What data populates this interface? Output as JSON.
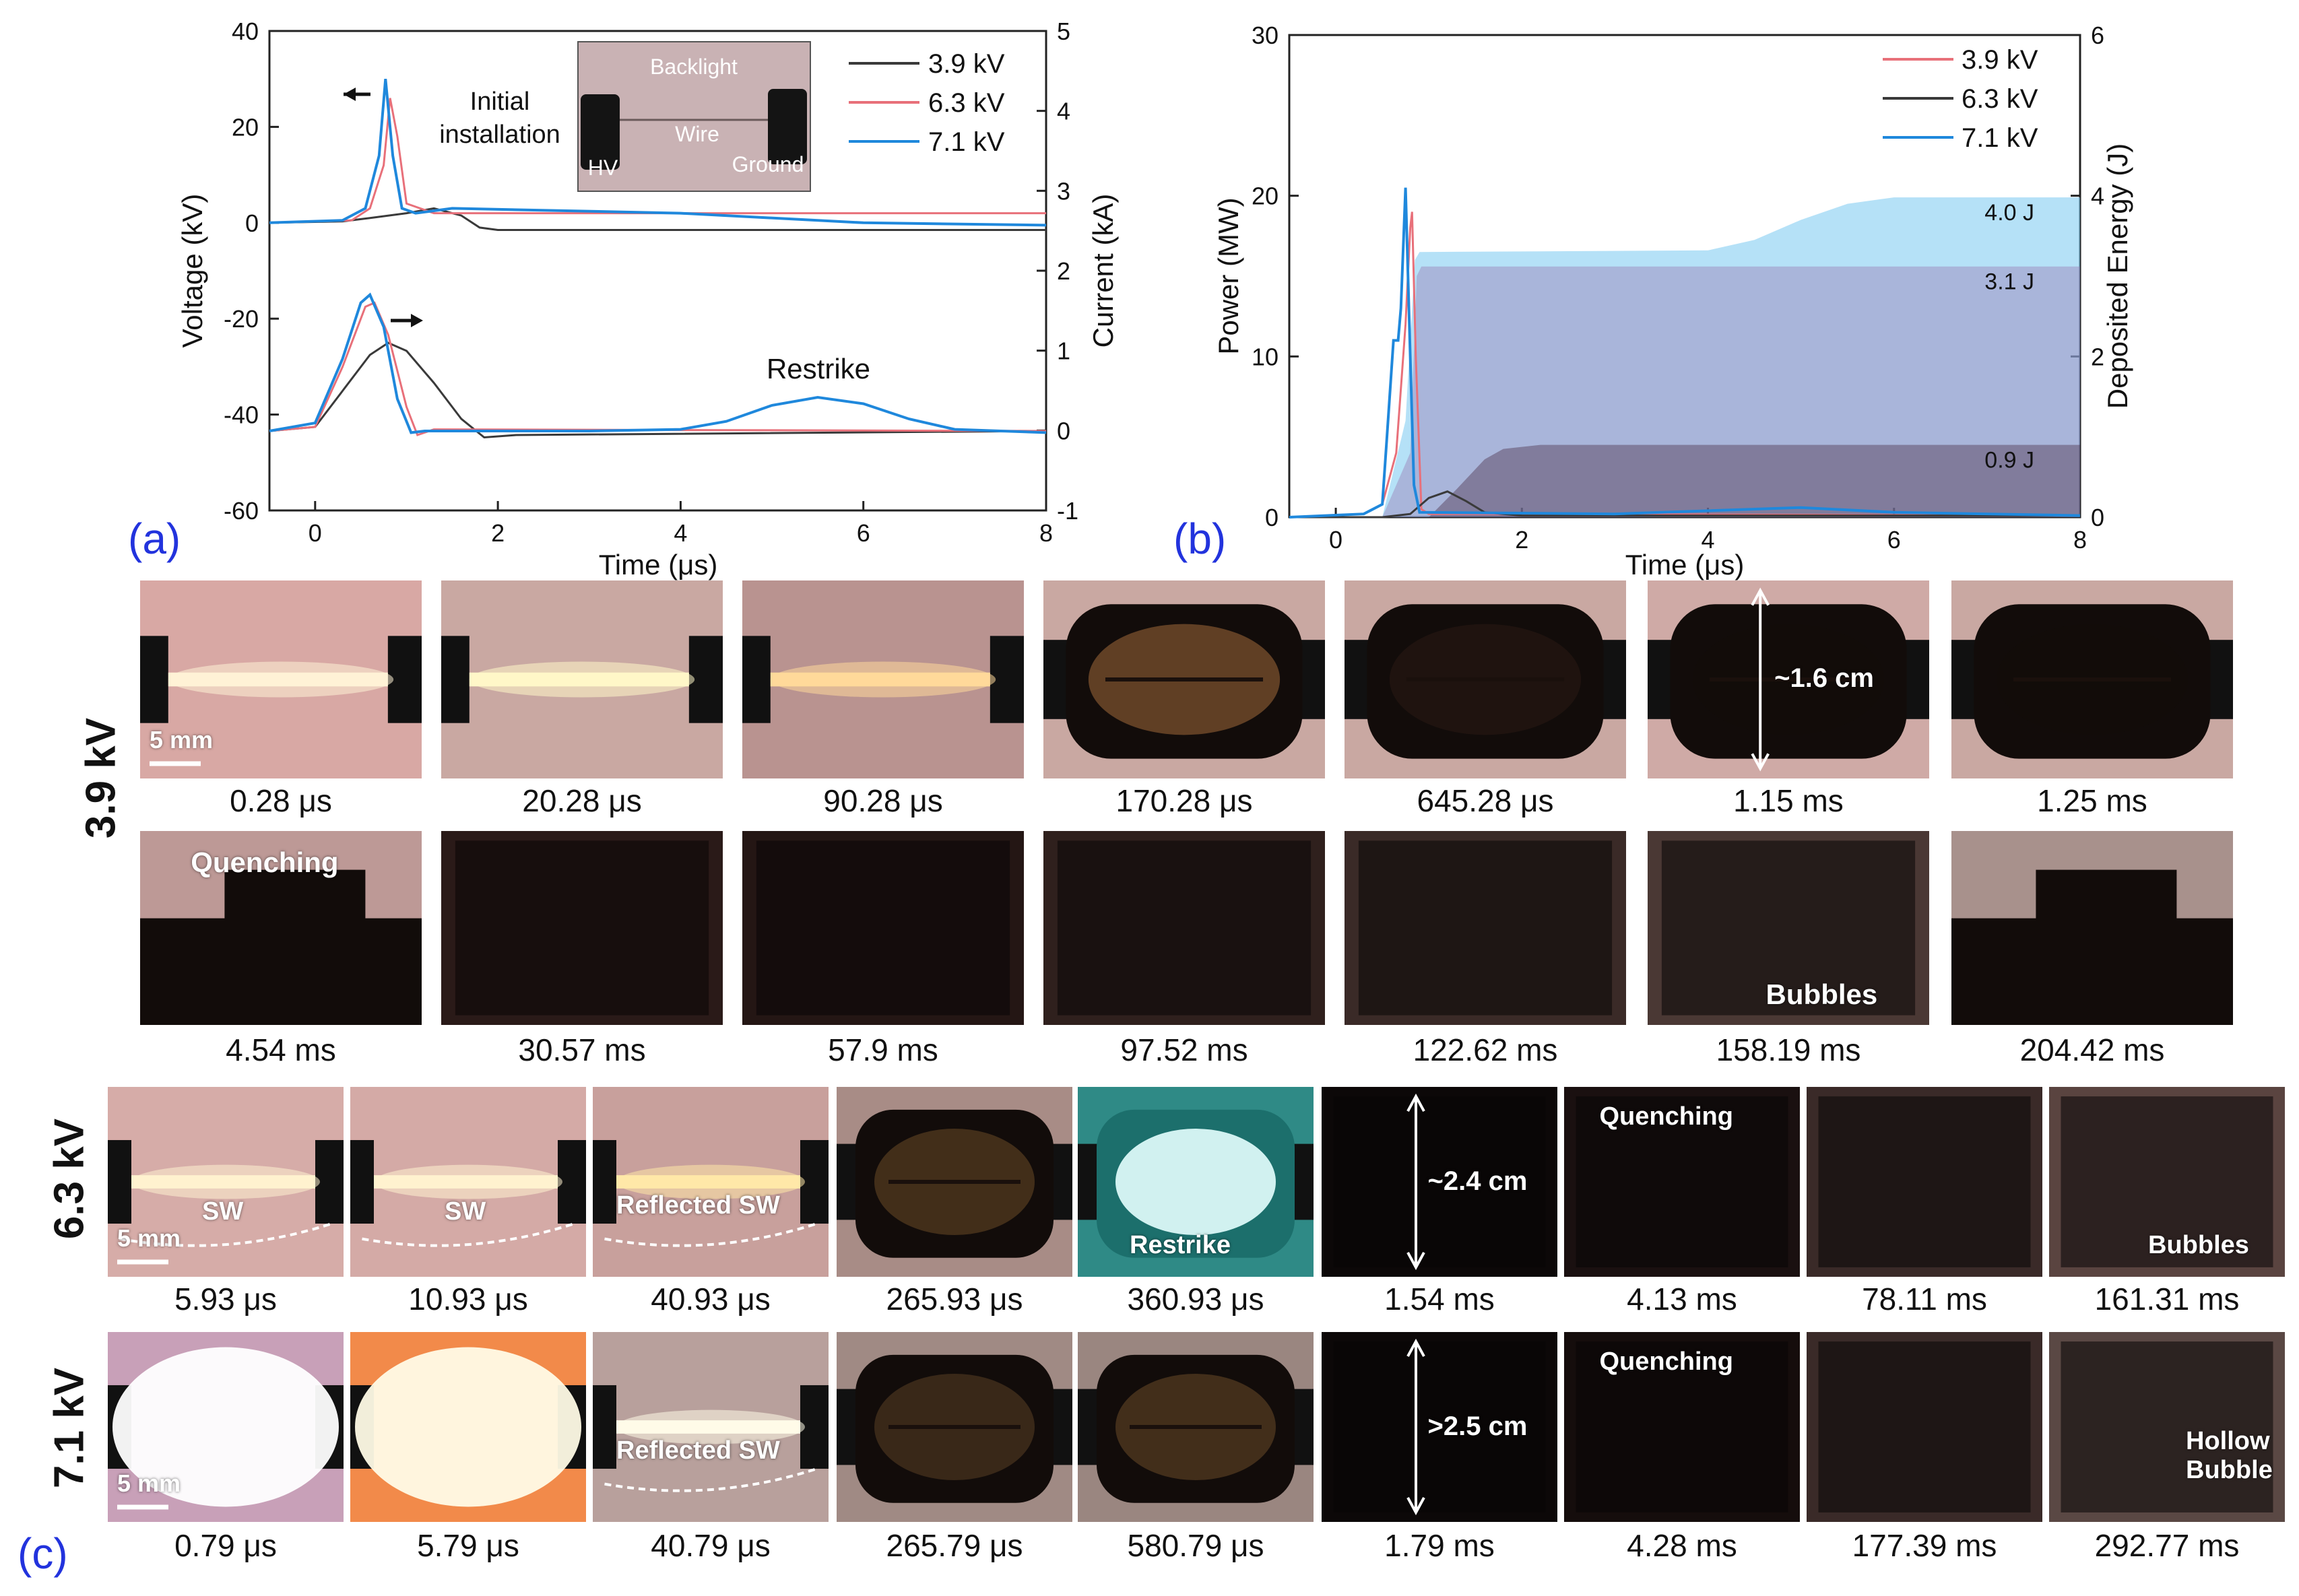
{
  "panel_labels": {
    "a": "(a)",
    "b": "(b)",
    "c": "(c)"
  },
  "chart_data": [
    {
      "type": "line",
      "title": "",
      "xlabel": "Time (μs)",
      "ylabel": "Voltage (kV)",
      "y2label": "Current (kA)",
      "xlim": [
        -0.5,
        8
      ],
      "ylim": [
        -60,
        40
      ],
      "y2lim": [
        -1,
        5
      ],
      "xticks": [
        "0",
        "2",
        "4",
        "6",
        "8"
      ],
      "yticks": [
        "40",
        "20",
        "0",
        "-20",
        "-40",
        "-60"
      ],
      "y2ticks": [
        "5",
        "4",
        "3",
        "2",
        "1",
        "0",
        "-1"
      ],
      "legend": {
        "position": "top-right",
        "entries": [
          "3.9 kV",
          "6.3 kV",
          "7.1 kV"
        ]
      },
      "colors": {
        "3.9 kV": "#3a3a3a",
        "6.3 kV": "#e8707a",
        "7.1 kV": "#1f88dc"
      },
      "annotations": {
        "restrike": "Restrike",
        "initial_line1": "Initial",
        "initial_line2": "installation"
      },
      "inset_labels": {
        "backlight": "Backlight",
        "wire": "Wire",
        "hv": "HV",
        "ground": "Ground"
      },
      "series": [
        {
          "name": "3.9 kV",
          "axis": "voltage",
          "x": [
            -0.5,
            0.3,
            0.6,
            1.0,
            1.3,
            1.6,
            1.8,
            2.0,
            8.0
          ],
          "y": [
            0,
            0.3,
            1,
            2,
            3,
            1.5,
            -1,
            -1.5,
            -1.5
          ]
        },
        {
          "name": "6.3 kV",
          "axis": "voltage",
          "x": [
            -0.5,
            0.4,
            0.6,
            0.75,
            0.82,
            0.9,
            1.0,
            1.3,
            2.0,
            8.0
          ],
          "y": [
            0,
            0.5,
            3,
            12,
            26,
            18,
            4,
            2,
            2,
            2
          ]
        },
        {
          "name": "7.1 kV",
          "axis": "voltage",
          "x": [
            -0.5,
            0.3,
            0.55,
            0.7,
            0.77,
            0.85,
            0.95,
            1.1,
            1.5,
            4.0,
            6.0,
            8.0
          ],
          "y": [
            0,
            0.5,
            3,
            14,
            30,
            14,
            3,
            2,
            3,
            2,
            0,
            -0.5
          ]
        },
        {
          "name": "3.9 kV",
          "axis": "current",
          "x": [
            -0.5,
            0.0,
            0.3,
            0.6,
            0.8,
            1.0,
            1.3,
            1.6,
            1.85,
            2.2,
            8.0
          ],
          "y": [
            0,
            0.05,
            0.5,
            0.95,
            1.1,
            1.0,
            0.6,
            0.15,
            -0.08,
            -0.05,
            0
          ]
        },
        {
          "name": "6.3 kV",
          "axis": "current",
          "x": [
            -0.5,
            0.0,
            0.3,
            0.55,
            0.65,
            0.8,
            1.0,
            1.12,
            1.3,
            8.0
          ],
          "y": [
            0,
            0.05,
            0.8,
            1.55,
            1.6,
            1.2,
            0.3,
            -0.05,
            0.02,
            0
          ]
        },
        {
          "name": "7.1 kV",
          "axis": "current",
          "x": [
            -0.5,
            0.0,
            0.3,
            0.5,
            0.6,
            0.75,
            0.9,
            1.05,
            1.2,
            3.0,
            4.0,
            4.5,
            5.0,
            5.5,
            6.0,
            6.5,
            7.0,
            8.0
          ],
          "y": [
            0,
            0.1,
            0.9,
            1.6,
            1.7,
            1.3,
            0.4,
            -0.02,
            0,
            0,
            0.02,
            0.12,
            0.32,
            0.42,
            0.34,
            0.15,
            0.02,
            -0.02
          ]
        }
      ]
    },
    {
      "type": "line",
      "title": "",
      "xlabel": "Time (μs)",
      "ylabel": "Power (MW)",
      "y2label": "Deposited Energy (J)",
      "xlim": [
        -0.5,
        8
      ],
      "ylim": [
        0,
        30
      ],
      "y2lim": [
        0,
        6
      ],
      "xticks": [
        "0",
        "2",
        "4",
        "6",
        "8"
      ],
      "yticks": [
        "30",
        "20",
        "10",
        "0"
      ],
      "y2ticks": [
        "6",
        "4",
        "2",
        "0"
      ],
      "legend": {
        "position": "top-right",
        "entries": [
          "3.9 kV",
          "6.3 kV",
          "7.1 kV"
        ]
      },
      "colors": {
        "3.9 kV": "#e8707a",
        "6.3 kV": "#3a3a3a",
        "7.1 kV": "#1f88dc"
      },
      "energy_labels": [
        "4.0 J",
        "3.1 J",
        "0.9 J"
      ],
      "series": [
        {
          "name": "3.9 kV",
          "axis": "power",
          "x": [
            -0.5,
            0.3,
            0.5,
            0.65,
            0.75,
            0.8,
            0.82,
            0.86,
            0.92,
            1.0,
            8.0
          ],
          "y": [
            0,
            0.2,
            0.8,
            4,
            12,
            18,
            19,
            10,
            0.5,
            0.2,
            0.1
          ]
        },
        {
          "name": "6.3 kV",
          "axis": "power",
          "x": [
            -0.5,
            0.5,
            0.8,
            1.0,
            1.2,
            1.4,
            1.6,
            2.0,
            8.0
          ],
          "y": [
            0,
            0,
            0.2,
            1.2,
            1.6,
            1.0,
            0.3,
            0.1,
            0.1
          ]
        },
        {
          "name": "7.1 kV",
          "axis": "power",
          "x": [
            -0.5,
            0.3,
            0.5,
            0.55,
            0.62,
            0.67,
            0.7,
            0.75,
            0.8,
            0.84,
            0.9,
            3.0,
            5.0,
            6.0,
            8.0
          ],
          "y": [
            0,
            0.2,
            0.8,
            5,
            11,
            11,
            13,
            20.5,
            10,
            2,
            0.3,
            0.2,
            0.6,
            0.3,
            0.1
          ]
        },
        {
          "name": "3.9 kV",
          "axis": "energy",
          "x": [
            -0.5,
            0.5,
            0.8,
            0.87,
            0.92,
            8.0
          ],
          "y": [
            0,
            0,
            0.8,
            3.0,
            3.12,
            3.12
          ]
        },
        {
          "name": "6.3 kV",
          "axis": "energy",
          "x": [
            -0.5,
            1.0,
            1.3,
            1.6,
            1.8,
            2.2,
            8.0
          ],
          "y": [
            0,
            0,
            0.35,
            0.72,
            0.85,
            0.9,
            0.9
          ]
        },
        {
          "name": "7.1 kV",
          "axis": "energy",
          "x": [
            -0.5,
            0.5,
            0.75,
            0.85,
            0.9,
            4.0,
            4.5,
            5.0,
            5.5,
            6.0,
            8.0
          ],
          "y": [
            0,
            0,
            1.2,
            3.2,
            3.3,
            3.32,
            3.45,
            3.7,
            3.9,
            3.98,
            3.98
          ]
        }
      ]
    }
  ],
  "photo_rows": [
    {
      "label": "3.9 kV",
      "frames": [
        {
          "time": "0.28 μs",
          "type": "wire",
          "glow": "#fff2d6",
          "tint": "#d8a8a4",
          "scale": "5 mm"
        },
        {
          "time": "20.28 μs",
          "type": "wire",
          "glow": "#fff7c8",
          "tint": "#c9a8a2"
        },
        {
          "time": "90.28 μs",
          "type": "wire",
          "glow": "#ffd99a",
          "tint": "#b99390"
        },
        {
          "time": "170.28 μs",
          "type": "bubble",
          "glow": "#a06a3a",
          "tint": "#c9a8a2"
        },
        {
          "time": "645.28 μs",
          "type": "bubble",
          "glow": "#2a1a14",
          "tint": "#c9a8a2"
        },
        {
          "time": "1.15 ms",
          "type": "bubble",
          "glow": "#120c0a",
          "tint": "#cfaaa6",
          "dim": "~1.6 cm"
        },
        {
          "time": "1.25 ms",
          "type": "bubble",
          "glow": "#120c0a",
          "tint": "#c9a8a2"
        }
      ]
    },
    {
      "label": "",
      "frames": [
        {
          "time": "4.54 ms",
          "type": "collapse",
          "tint": "#bd9996",
          "text": "Quenching"
        },
        {
          "time": "30.57 ms",
          "type": "dark",
          "tint": "#2a1a18"
        },
        {
          "time": "57.9 ms",
          "type": "dark",
          "tint": "#241614"
        },
        {
          "time": "97.52 ms",
          "type": "dark",
          "tint": "#2f201d"
        },
        {
          "time": "122.62 ms",
          "type": "dark",
          "tint": "#3a2a27"
        },
        {
          "time": "158.19 ms",
          "type": "dark",
          "tint": "#4a3834",
          "text": "Bubbles"
        },
        {
          "time": "204.42 ms",
          "type": "collapse",
          "tint": "#a8918c"
        }
      ]
    },
    {
      "label": "6.3 kV",
      "frames": [
        {
          "time": "5.93 μs",
          "type": "wire",
          "glow": "#fff2cf",
          "tint": "#d6aca8",
          "scale": "5 mm",
          "text": "SW"
        },
        {
          "time": "10.93 μs",
          "type": "wire",
          "glow": "#fff2cf",
          "tint": "#d4aaa6",
          "text": "SW"
        },
        {
          "time": "40.93 μs",
          "type": "wire",
          "glow": "#ffe8a8",
          "tint": "#c8a09c",
          "text": "Reflected SW"
        },
        {
          "time": "265.93 μs",
          "type": "bubble",
          "glow": "#6a4a26",
          "tint": "#a88c86"
        },
        {
          "time": "360.93 μs",
          "type": "restrike",
          "glow": "#e6ffff",
          "tint": "#2f8a86",
          "text": "Restrike"
        },
        {
          "time": "1.54 ms",
          "type": "dark",
          "tint": "#0c0808",
          "dim": "~2.4 cm"
        },
        {
          "time": "4.13 ms",
          "type": "dark",
          "tint": "#1a1010",
          "text": "Quenching"
        },
        {
          "time": "78.11 ms",
          "type": "dark",
          "tint": "#3a2a28"
        },
        {
          "time": "161.31 ms",
          "type": "dark",
          "tint": "#5a4440",
          "text": "Bubbles"
        }
      ]
    },
    {
      "label": "7.1 kV",
      "frames": [
        {
          "time": "0.79 μs",
          "type": "flash",
          "glow": "#ffffff",
          "tint": "#c8a0b8",
          "scale": "5 mm"
        },
        {
          "time": "5.79 μs",
          "type": "flash",
          "glow": "#fffbe6",
          "tint": "#f28a4a"
        },
        {
          "time": "40.79 μs",
          "type": "wire",
          "glow": "#fffbe8",
          "tint": "#b8a09c",
          "text": "Reflected SW"
        },
        {
          "time": "265.79 μs",
          "type": "bubble",
          "glow": "#5a4024",
          "tint": "#a08a84"
        },
        {
          "time": "580.79 μs",
          "type": "bubble",
          "glow": "#6a4a28",
          "tint": "#9a8680"
        },
        {
          "time": "1.79 ms",
          "type": "dark",
          "tint": "#0c0808",
          "dim": ">2.5 cm"
        },
        {
          "time": "4.28 ms",
          "type": "dark",
          "tint": "#150d0c",
          "text": "Quenching"
        },
        {
          "time": "177.39 ms",
          "type": "dark",
          "tint": "#3a2a28"
        },
        {
          "time": "292.77 ms",
          "type": "dark",
          "tint": "#5a4844",
          "text": "Hollow\nBubble"
        }
      ]
    }
  ]
}
